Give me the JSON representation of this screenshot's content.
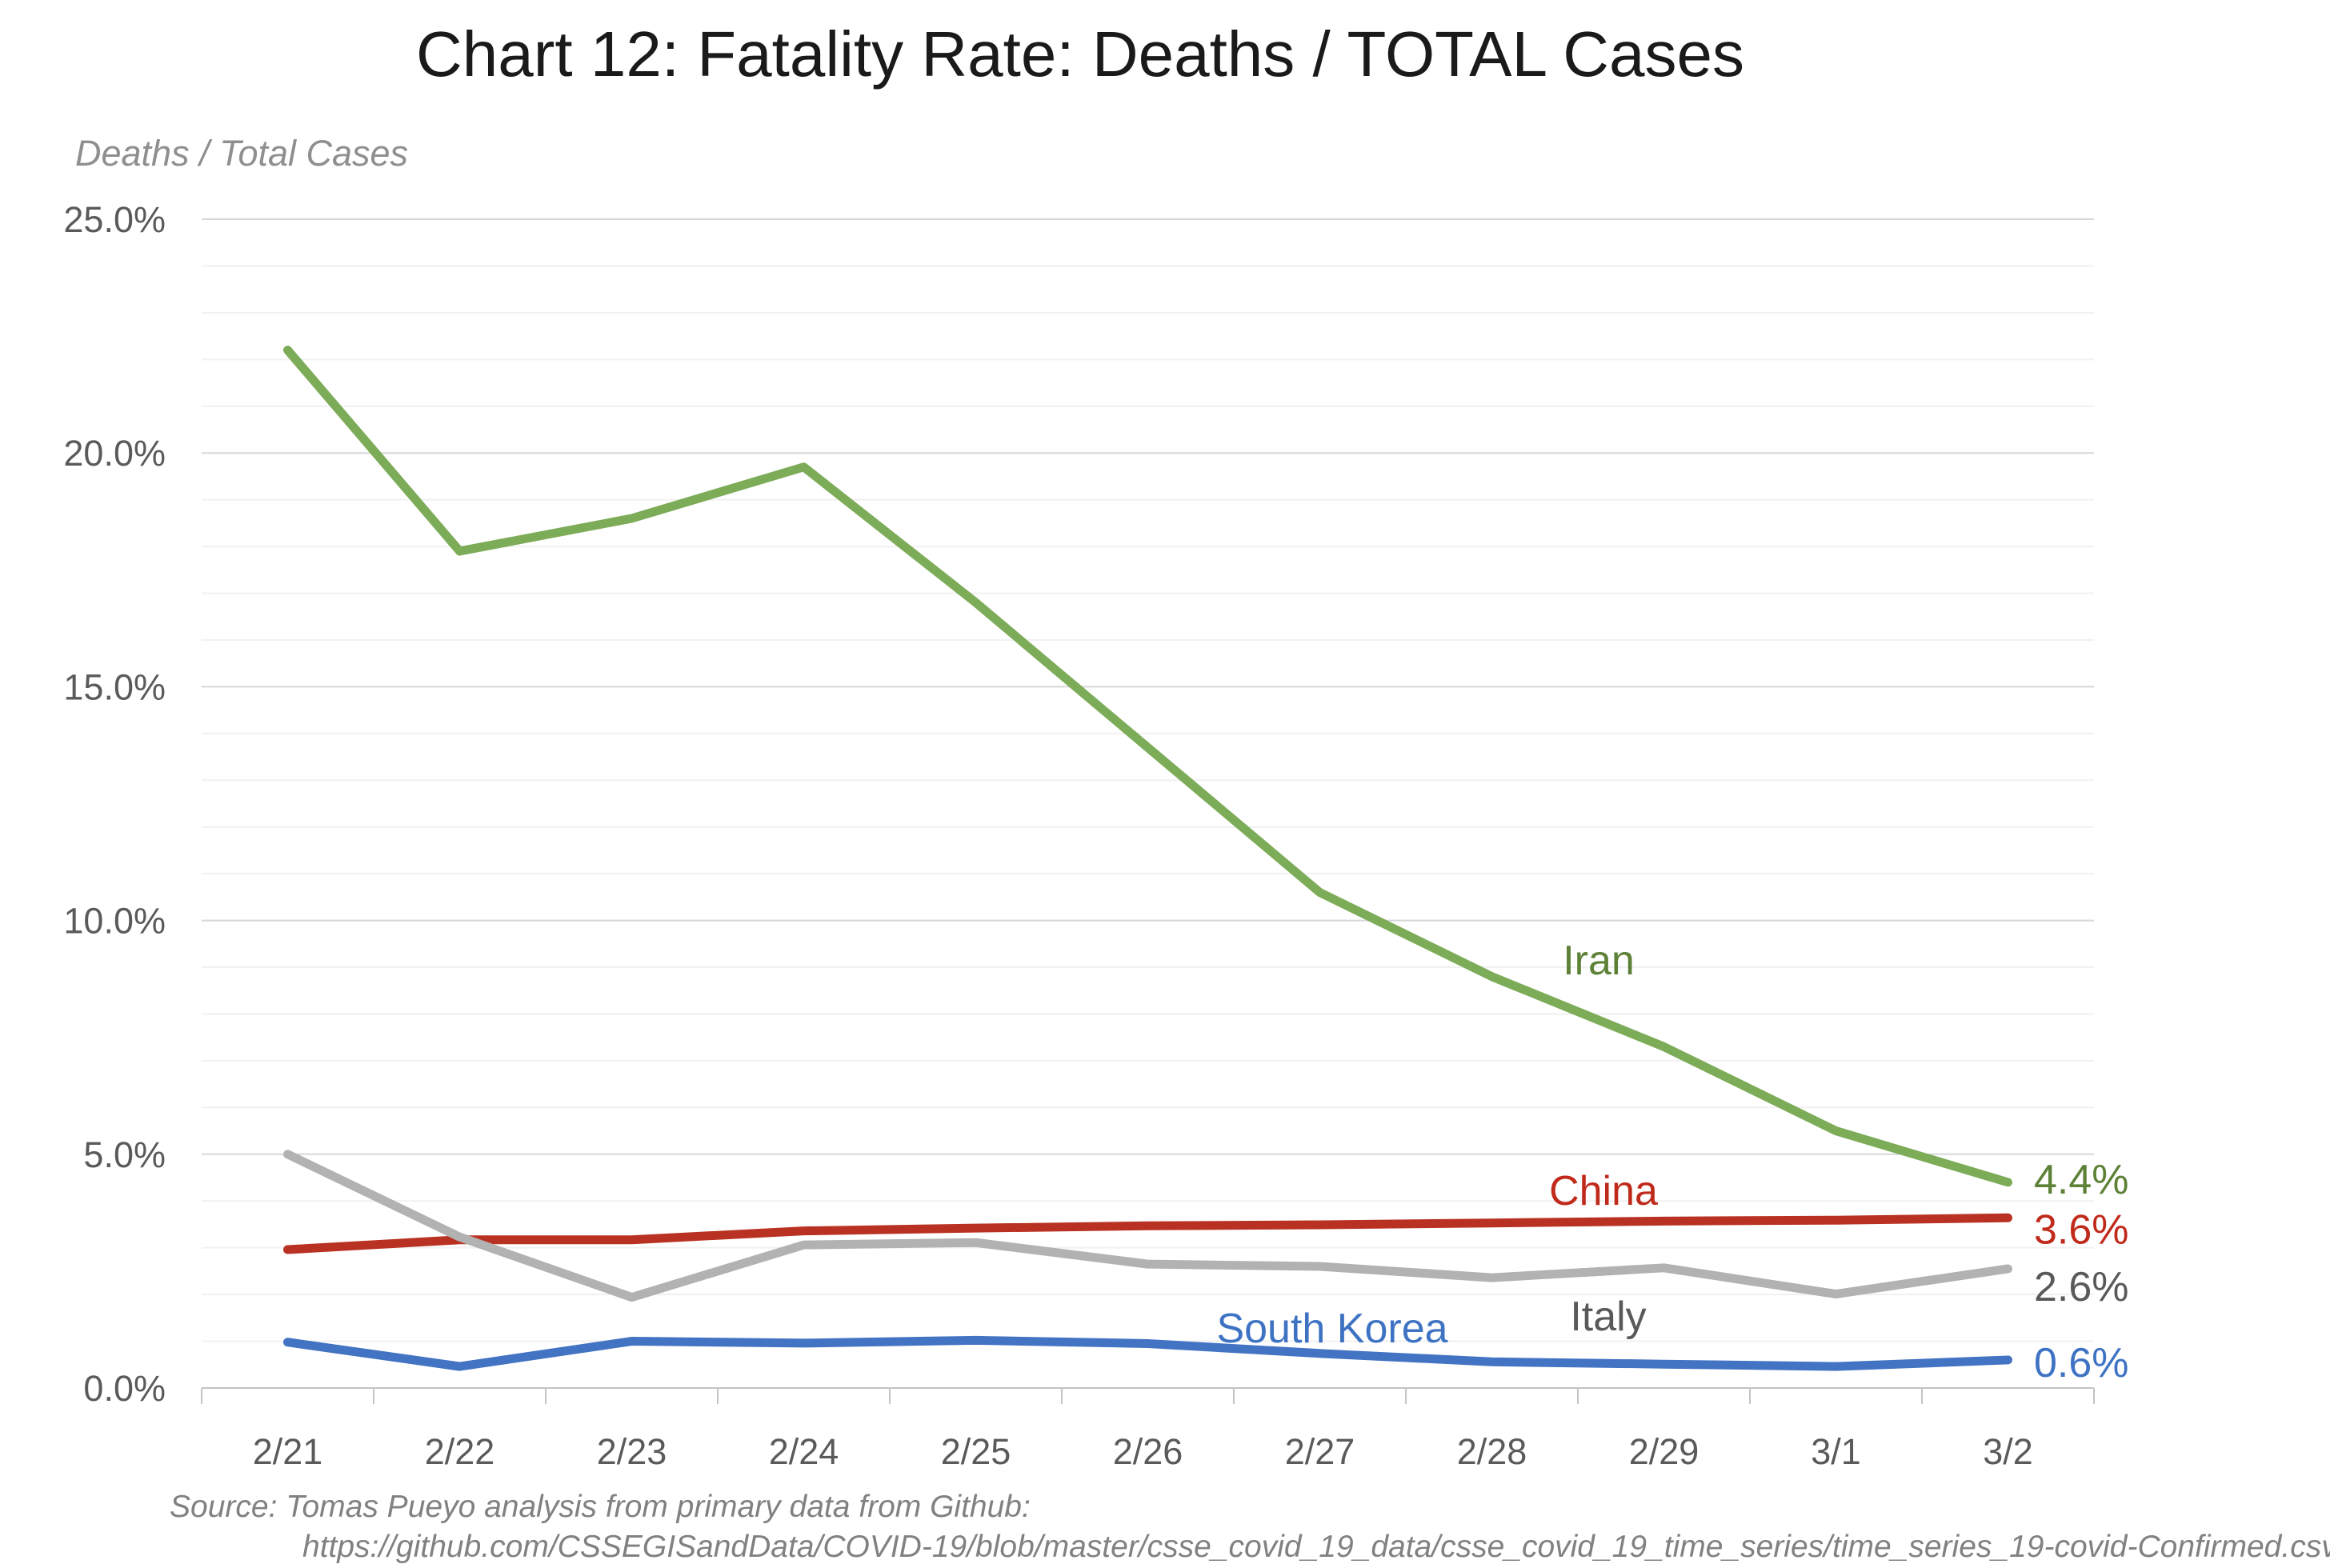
{
  "source": {
    "line1": "Source: Tomas Pueyo analysis from primary data from Github:",
    "line2": "https://github.com/CSSEGISandData/COVID-19/blob/master/csse_covid_19_data/csse_covid_19_time_series/time_series_19-covid-Confirmed.csv"
  },
  "chart_data": {
    "type": "line",
    "title": "Chart 12: Fatality Rate: Deaths / TOTAL Cases",
    "ylabel": "Deaths / Total Cases",
    "xlabel": "",
    "categories": [
      "2/21",
      "2/22",
      "2/23",
      "2/24",
      "2/25",
      "2/26",
      "2/27",
      "2/28",
      "2/29",
      "3/1",
      "3/2"
    ],
    "y_ticks": [
      "0.0%",
      "5.0%",
      "10.0%",
      "15.0%",
      "20.0%",
      "25.0%"
    ],
    "ylim": [
      0,
      25
    ],
    "grid": "horizontal, major every 5% (darker) and minor every 1% (faint)",
    "legend_position": "inline series name labels next to lines, value labels at right line ends",
    "series": [
      {
        "name": "Iran",
        "color": "#7dac58",
        "label_color": "#5d8136",
        "values": [
          22.2,
          17.9,
          18.6,
          19.7,
          16.8,
          13.7,
          10.6,
          8.8,
          7.3,
          5.5,
          4.4
        ],
        "end_label": "4.4%"
      },
      {
        "name": "China",
        "color": "#b93122",
        "label_color": "#c02a1b",
        "values": [
          2.96,
          3.17,
          3.17,
          3.36,
          3.42,
          3.47,
          3.49,
          3.53,
          3.57,
          3.59,
          3.64
        ],
        "end_label": "3.6%"
      },
      {
        "name": "Italy",
        "color": "#b2b2b2",
        "label_color": "#595959",
        "values": [
          5.0,
          3.23,
          1.94,
          3.06,
          3.11,
          2.65,
          2.6,
          2.36,
          2.57,
          2.01,
          2.55
        ],
        "end_label": "2.6%"
      },
      {
        "name": "South Korea",
        "color": "#4373c3",
        "label_color": "#3e73c4",
        "values": [
          0.98,
          0.46,
          1.0,
          0.96,
          1.02,
          0.95,
          0.74,
          0.56,
          0.51,
          0.46,
          0.6
        ],
        "end_label": "0.6%"
      }
    ]
  }
}
